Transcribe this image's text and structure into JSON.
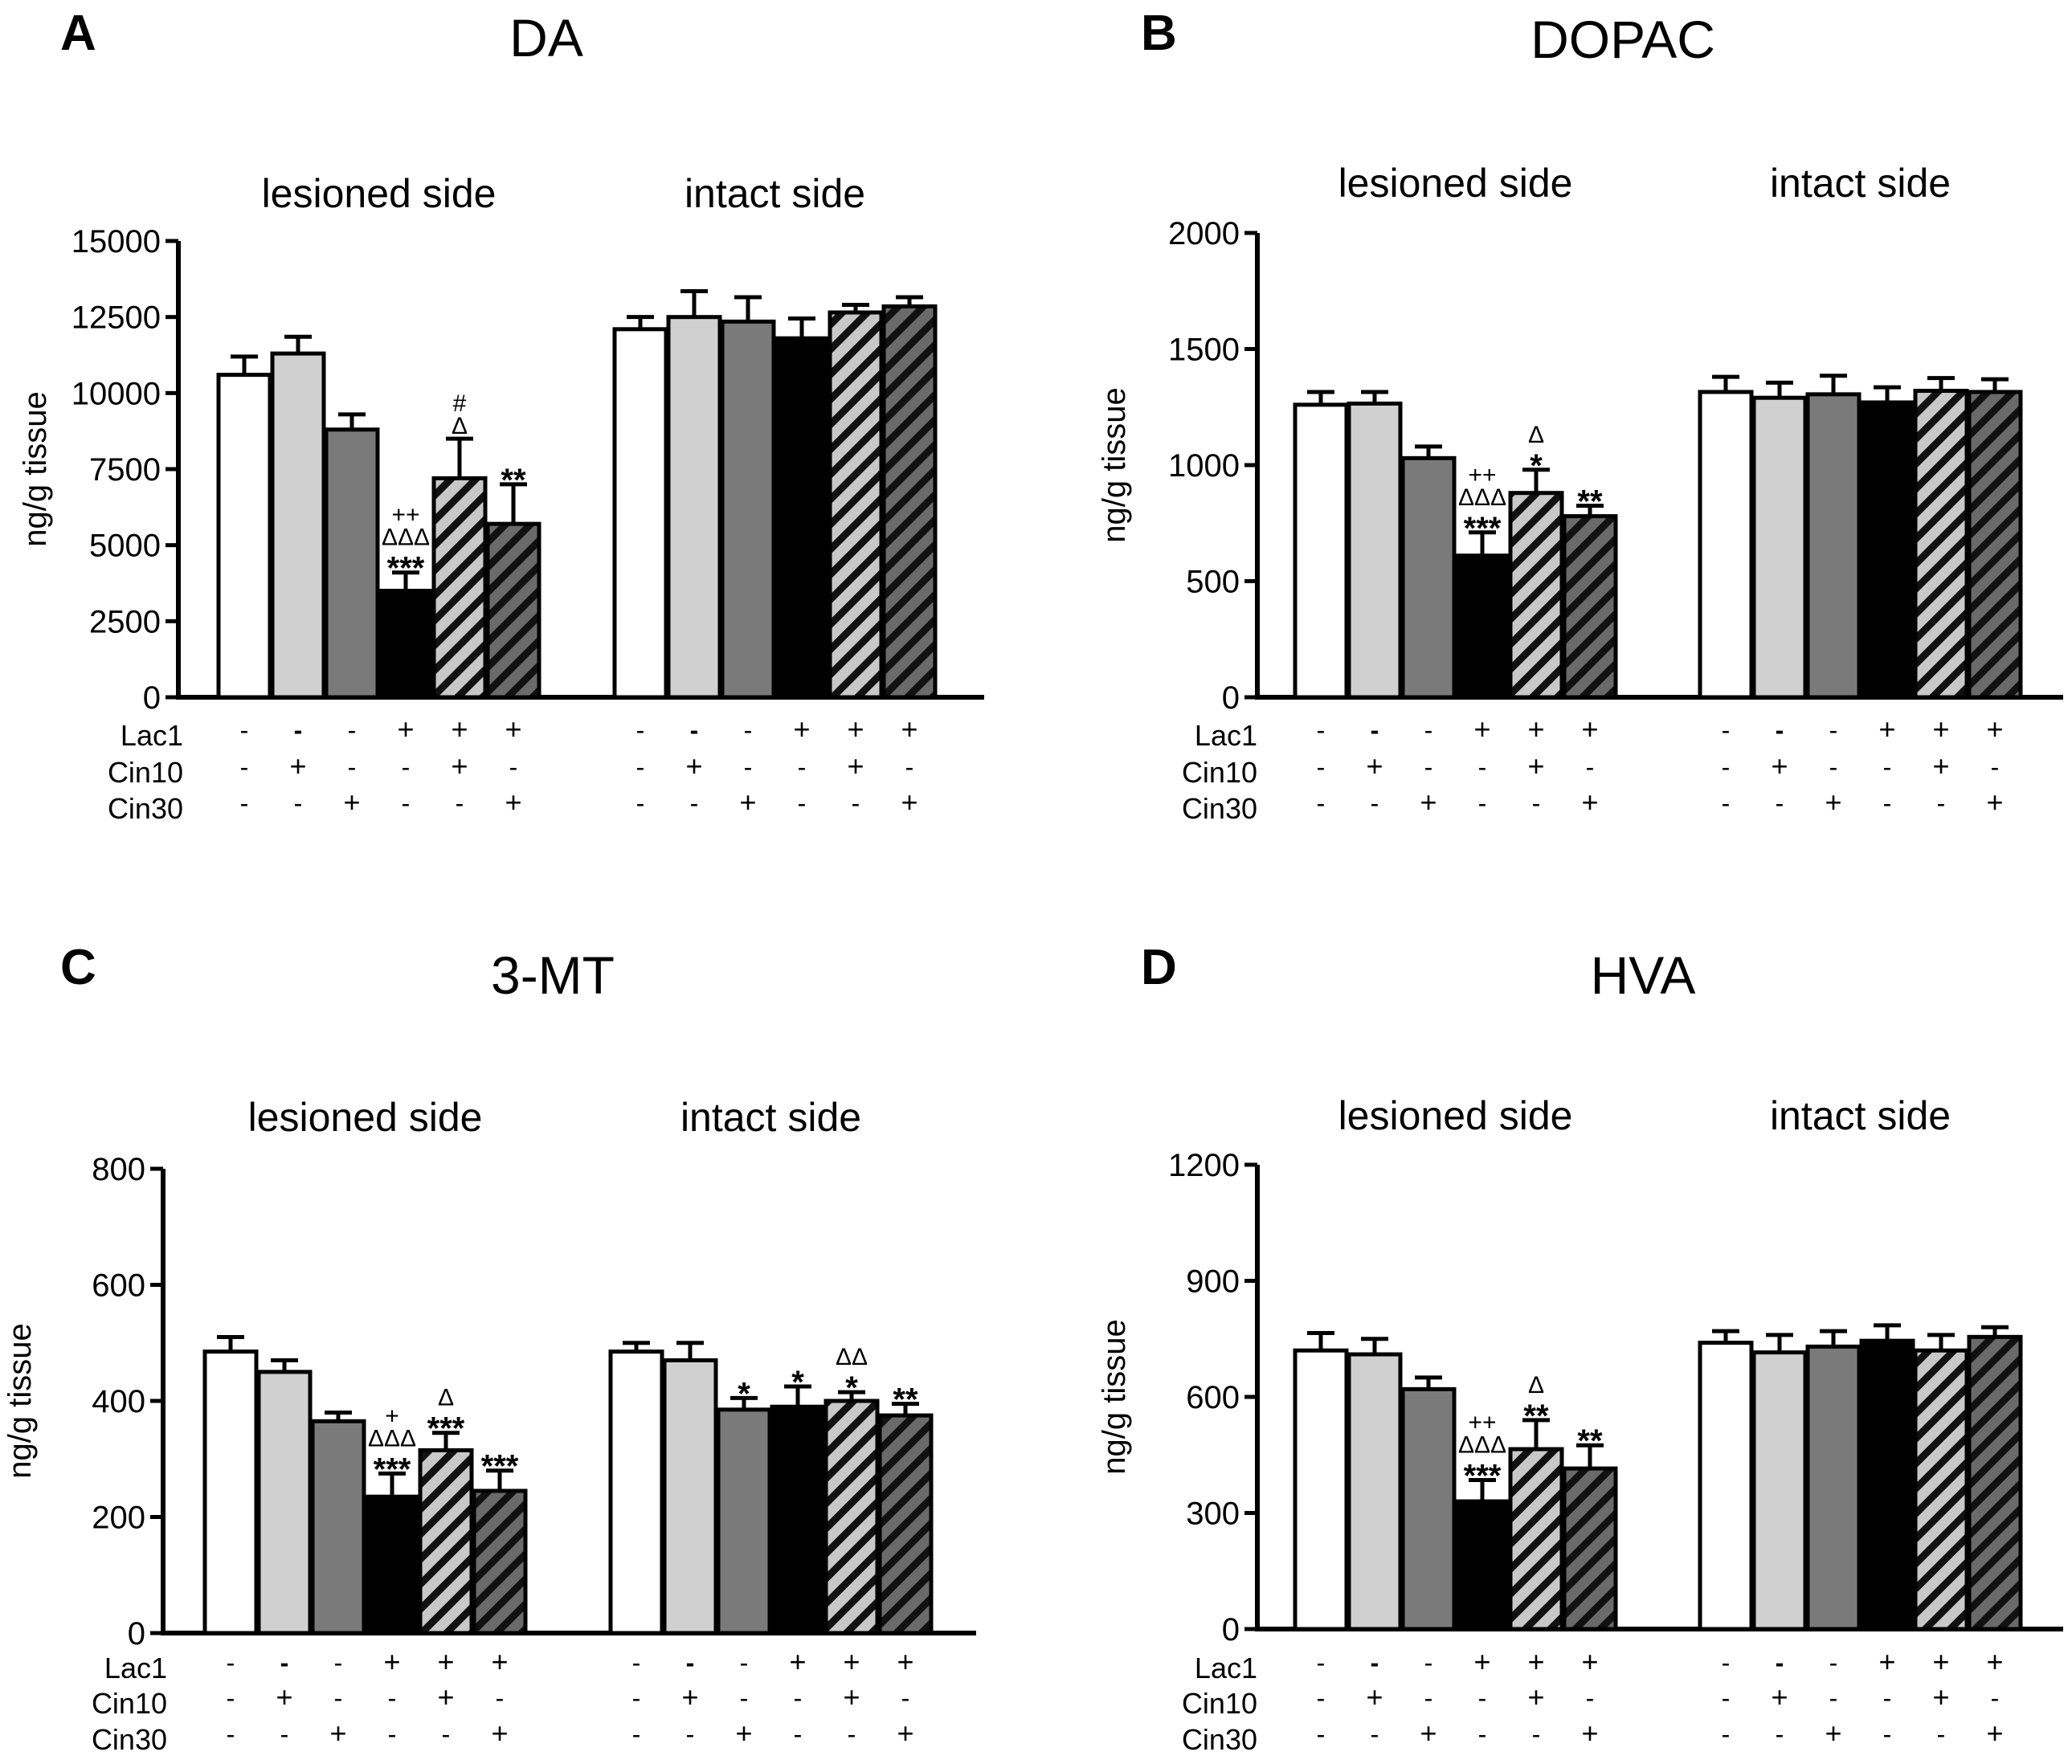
{
  "figure": {
    "treatment_rows": [
      "Lac1",
      "Cin10",
      "Cin30"
    ],
    "groups": [
      {
        "Lac1": "-",
        "Cin10": "-",
        "Cin30": "-",
        "fill": "white"
      },
      {
        "Lac1": "-",
        "Cin10": "+",
        "Cin30": "-",
        "fill": "lightgray"
      },
      {
        "Lac1": "-",
        "Cin10": "-",
        "Cin30": "+",
        "fill": "darkgray"
      },
      {
        "Lac1": "+",
        "Cin10": "-",
        "Cin30": "-",
        "fill": "black"
      },
      {
        "Lac1": "+",
        "Cin10": "+",
        "Cin30": "-",
        "fill": "hatch-light"
      },
      {
        "Lac1": "+",
        "Cin10": "-",
        "Cin30": "+",
        "fill": "hatch-dark"
      }
    ],
    "colors": {
      "white": "#ffffff",
      "lightgray": "#d0d0d0",
      "darkgray": "#7a7a7a",
      "black": "#000000",
      "hatch_light_bg": "#c8c8c8",
      "hatch_dark_bg": "#6a6a6a",
      "hatch_line": "#111111"
    }
  },
  "chart_data": [
    {
      "panel": "A",
      "title": "DA",
      "type": "bar",
      "ylabel": "ng/g tissue",
      "ylim": [
        0,
        15000
      ],
      "yticks": [
        0,
        2500,
        5000,
        7500,
        10000,
        12500,
        15000
      ],
      "sides": [
        "lesioned  side",
        "intact side"
      ],
      "series": [
        {
          "name": "lesioned side",
          "values": [
            10600,
            11300,
            8800,
            3500,
            7200,
            5700
          ],
          "errors": [
            600,
            550,
            500,
            600,
            1300,
            1300
          ],
          "annotations": [
            [],
            [],
            [],
            [
              "++",
              "ΔΔΔ",
              "***"
            ],
            [
              "#",
              "Δ"
            ],
            [
              "**"
            ]
          ]
        },
        {
          "name": "intact side",
          "values": [
            12100,
            12500,
            12350,
            11800,
            12650,
            12850
          ],
          "errors": [
            400,
            850,
            800,
            650,
            250,
            300
          ],
          "annotations": [
            [],
            [],
            [],
            [],
            [],
            []
          ]
        }
      ]
    },
    {
      "panel": "B",
      "title": "DOPAC",
      "type": "bar",
      "ylabel": "ng/g tissue",
      "ylim": [
        0,
        2000
      ],
      "yticks": [
        0,
        500,
        1000,
        1500,
        2000
      ],
      "sides": [
        "lesioned side",
        "intact side"
      ],
      "series": [
        {
          "name": "lesioned side",
          "values": [
            1260,
            1265,
            1030,
            610,
            880,
            780
          ],
          "errors": [
            55,
            50,
            50,
            100,
            100,
            45
          ],
          "annotations": [
            [],
            [],
            [],
            [
              "++",
              "ΔΔΔ",
              "***"
            ],
            [
              "Δ",
              "*"
            ],
            [
              "**"
            ]
          ]
        },
        {
          "name": "intact side",
          "values": [
            1315,
            1290,
            1305,
            1270,
            1320,
            1315
          ],
          "errors": [
            65,
            65,
            80,
            65,
            55,
            55
          ],
          "annotations": [
            [],
            [],
            [],
            [],
            [],
            []
          ]
        }
      ]
    },
    {
      "panel": "C",
      "title": "3-MT",
      "type": "bar",
      "ylabel": "ng/g tissue",
      "ylim": [
        0,
        800
      ],
      "yticks": [
        0,
        200,
        400,
        600,
        800
      ],
      "sides": [
        "lesioned side",
        "intact side"
      ],
      "series": [
        {
          "name": "lesioned side",
          "values": [
            485,
            450,
            365,
            235,
            315,
            245
          ],
          "errors": [
            25,
            20,
            15,
            40,
            30,
            35
          ],
          "annotations": [
            [],
            [],
            [],
            [
              "+",
              "ΔΔΔ",
              "***"
            ],
            [
              "Δ",
              "***"
            ],
            [
              "***"
            ]
          ]
        },
        {
          "name": "intact side",
          "values": [
            485,
            470,
            385,
            390,
            400,
            375
          ],
          "errors": [
            15,
            30,
            20,
            35,
            15,
            20
          ],
          "annotations": [
            [],
            [],
            [
              "*"
            ],
            [
              "*"
            ],
            [
              "ΔΔ",
              "*"
            ],
            [
              "**"
            ]
          ]
        }
      ]
    },
    {
      "panel": "D",
      "title": "HVA",
      "type": "bar",
      "ylabel": "ng/g tissue",
      "ylim": [
        0,
        1200
      ],
      "yticks": [
        0,
        300,
        600,
        900,
        1200
      ],
      "sides": [
        "lesioned side",
        "intact side"
      ],
      "series": [
        {
          "name": "lesioned side",
          "values": [
            720,
            710,
            620,
            330,
            465,
            415
          ],
          "errors": [
            45,
            40,
            30,
            55,
            75,
            60
          ],
          "annotations": [
            [],
            [],
            [],
            [
              "++",
              "ΔΔΔ",
              "***"
            ],
            [
              "Δ",
              "**"
            ],
            [
              "**"
            ]
          ]
        },
        {
          "name": "intact side",
          "values": [
            740,
            715,
            730,
            745,
            720,
            755
          ],
          "errors": [
            30,
            45,
            40,
            40,
            40,
            25
          ],
          "annotations": [
            [],
            [],
            [],
            [],
            [],
            []
          ]
        }
      ]
    }
  ]
}
